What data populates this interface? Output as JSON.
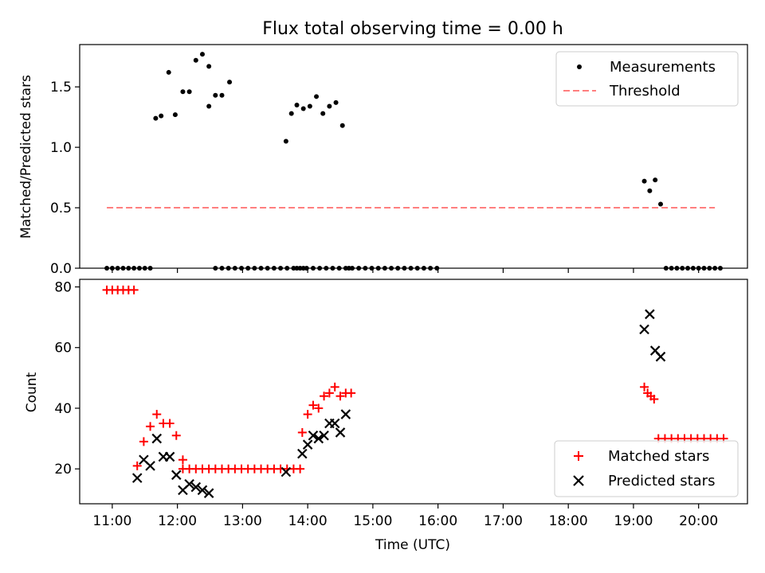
{
  "title": "Flux total observing time = 0.00 h",
  "colors": {
    "measurement": "#000000",
    "threshold": "#ff7f7f",
    "matched": "#ff0000",
    "predicted": "#000000"
  },
  "chart_data": [
    {
      "type": "scatter",
      "panel": "top",
      "ylabel": "Matched/Predicted stars",
      "xlabel": "",
      "ylim": [
        0,
        1.85
      ],
      "yticks": [
        "0.0",
        "0.5",
        "1.0",
        "1.5"
      ],
      "legend": {
        "placement": "top-right",
        "entries": [
          "Measurements",
          "Threshold"
        ]
      },
      "series": [
        {
          "name": "Measurements",
          "marker": "dot",
          "x": [
            "10:55",
            "11:00",
            "11:05",
            "11:10",
            "11:15",
            "11:20",
            "11:25",
            "11:30",
            "11:35",
            "11:40",
            "11:45",
            "11:52",
            "11:58",
            "12:05",
            "12:11",
            "12:17",
            "12:23",
            "12:29",
            "12:35",
            "12:41",
            "12:48",
            "12:29",
            "12:35",
            "12:41",
            "12:47",
            "12:53",
            "12:59",
            "13:05",
            "13:11",
            "13:17",
            "13:23",
            "13:29",
            "13:35",
            "13:41",
            "13:47",
            "13:53",
            "13:59",
            "14:05",
            "14:11",
            "14:17",
            "14:23",
            "14:29",
            "14:35",
            "14:41",
            "14:47",
            "14:53",
            "14:59",
            "15:05",
            "15:11",
            "15:17",
            "15:23",
            "15:29",
            "15:35",
            "15:41",
            "15:47",
            "15:53",
            "15:59",
            "13:40",
            "13:50",
            "13:56",
            "13:45",
            "13:50",
            "13:56",
            "14:02",
            "14:08",
            "14:14",
            "14:20",
            "14:26",
            "14:32",
            "14:38",
            "19:10",
            "19:15",
            "19:20",
            "19:25",
            "19:30",
            "19:35",
            "19:40",
            "19:45",
            "19:50",
            "19:55",
            "20:00",
            "20:05",
            "20:10",
            "20:15",
            "20:20"
          ],
          "y": [
            0,
            0,
            0,
            0,
            0,
            0,
            0,
            0,
            0,
            1.24,
            1.26,
            1.62,
            1.27,
            1.46,
            1.46,
            1.72,
            1.77,
            1.34,
            1.43,
            1.43,
            1.54,
            1.67,
            0,
            0,
            0,
            0,
            0,
            0,
            0,
            0,
            0,
            0,
            0,
            0,
            0,
            0,
            0,
            0,
            0,
            0,
            0,
            0,
            0,
            0,
            0,
            0,
            0,
            0,
            0,
            0,
            0,
            0,
            0,
            0,
            0,
            0,
            0,
            1.05,
            0,
            0,
            1.28,
            1.35,
            1.32,
            1.34,
            1.42,
            1.28,
            1.34,
            1.37,
            1.18,
            0,
            0.72,
            0.64,
            0.73,
            0.53,
            0,
            0,
            0,
            0,
            0,
            0,
            0,
            0,
            0,
            0,
            0
          ]
        },
        {
          "name": "Threshold",
          "style": "dashed",
          "x": [
            "10:55",
            "20:15"
          ],
          "y": [
            0.5,
            0.5
          ]
        }
      ]
    },
    {
      "type": "scatter",
      "panel": "bottom",
      "xlabel": "Time (UTC)",
      "ylabel": "Count",
      "ylim": [
        8.5,
        82.5
      ],
      "yticks": [
        "20",
        "40",
        "60",
        "80"
      ],
      "xlim": [
        "10:30",
        "20:45"
      ],
      "xticks": [
        "11:00",
        "12:00",
        "13:00",
        "14:00",
        "15:00",
        "16:00",
        "17:00",
        "18:00",
        "19:00",
        "20:00"
      ],
      "legend": {
        "placement": "bottom-right",
        "entries": [
          "Matched stars",
          "Predicted stars"
        ]
      },
      "series": [
        {
          "name": "Matched stars",
          "marker": "plus",
          "x": [
            "10:55",
            "11:00",
            "11:05",
            "11:10",
            "11:15",
            "11:20",
            "11:23",
            "11:29",
            "11:35",
            "11:41",
            "11:47",
            "11:53",
            "11:59",
            "12:05",
            "12:05",
            "12:11",
            "12:17",
            "12:23",
            "12:29",
            "12:35",
            "12:41",
            "12:47",
            "12:53",
            "12:59",
            "13:05",
            "13:11",
            "13:17",
            "13:23",
            "13:29",
            "13:35",
            "13:41",
            "13:47",
            "13:53",
            "13:55",
            "14:00",
            "14:05",
            "14:10",
            "14:15",
            "14:20",
            "14:25",
            "14:30",
            "14:35",
            "14:40",
            "19:10",
            "19:13",
            "19:16",
            "19:19",
            "19:23",
            "19:29",
            "19:35",
            "19:41",
            "19:47",
            "19:53",
            "19:59",
            "20:05",
            "20:11",
            "20:17",
            "20:23"
          ],
          "y": [
            79,
            79,
            79,
            79,
            79,
            79,
            21,
            29,
            34,
            38,
            35,
            35,
            31,
            23,
            20,
            20,
            20,
            20,
            20,
            20,
            20,
            20,
            20,
            20,
            20,
            20,
            20,
            20,
            20,
            20,
            20,
            20,
            20,
            32,
            38,
            41,
            40,
            44,
            45,
            47,
            44,
            45,
            45,
            47,
            45,
            44,
            43,
            30,
            30,
            30,
            30,
            30,
            30,
            30,
            30,
            30,
            30,
            30
          ]
        },
        {
          "name": "Predicted stars",
          "marker": "x",
          "x": [
            "11:23",
            "11:29",
            "11:35",
            "11:41",
            "11:47",
            "11:53",
            "11:59",
            "12:05",
            "12:11",
            "12:17",
            "12:23",
            "12:29",
            "13:40",
            "13:55",
            "14:00",
            "14:05",
            "14:10",
            "14:15",
            "14:20",
            "14:25",
            "14:30",
            "14:35",
            "19:10",
            "19:15",
            "19:20",
            "19:25"
          ],
          "y": [
            17,
            23,
            21,
            30,
            24,
            24,
            18,
            13,
            15,
            14,
            13,
            12,
            19,
            25,
            28,
            31,
            30,
            31,
            35,
            35,
            32,
            38,
            66,
            71,
            59,
            57
          ]
        }
      ]
    }
  ]
}
